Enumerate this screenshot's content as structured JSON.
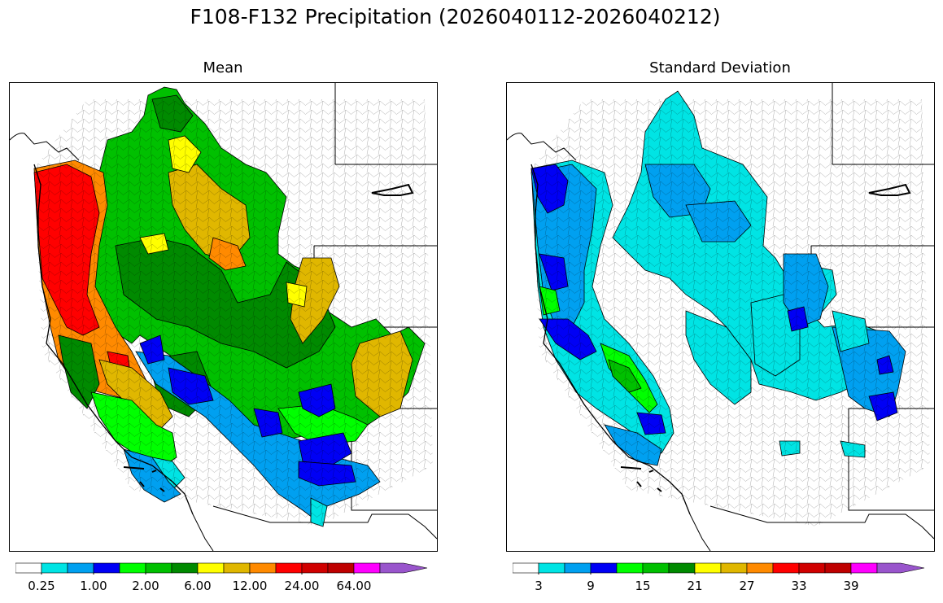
{
  "title": "F108-F132 Precipitation (2026040112-2026040212)",
  "panels": [
    {
      "title": "Mean",
      "colorbar": {
        "colors": [
          "#ffffff",
          "#00e4e4",
          "#00a0f0",
          "#0000f5",
          "#00ff00",
          "#00c000",
          "#008a00",
          "#ffff00",
          "#e0b700",
          "#ff8a00",
          "#ff0000",
          "#d00000",
          "#be0000",
          "#ff00ff",
          "#9955cc"
        ],
        "labels": [
          "0.25",
          "1.00",
          "2.00",
          "6.00",
          "12.00",
          "24.00",
          "64.00"
        ],
        "extend": "max"
      }
    },
    {
      "title": "Standard Deviation",
      "colorbar": {
        "colors": [
          "#ffffff",
          "#00e4e4",
          "#00a0f0",
          "#0000f5",
          "#00ff00",
          "#00c000",
          "#008a00",
          "#ffff00",
          "#e0b700",
          "#ff8a00",
          "#ff0000",
          "#d00000",
          "#be0000",
          "#ff00ff",
          "#9955cc"
        ],
        "labels": [
          "3",
          "9",
          "15",
          "21",
          "27",
          "33",
          "39"
        ],
        "extend": "max"
      }
    }
  ]
}
